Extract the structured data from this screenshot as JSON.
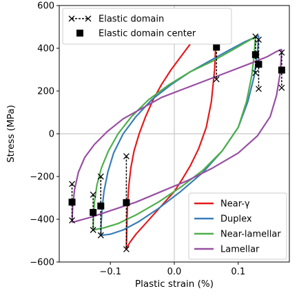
{
  "chart_data": {
    "type": "line",
    "xlabel": "Plastic strain (%)",
    "ylabel": "Stress (MPa)",
    "xlim": [
      -0.18,
      0.18
    ],
    "ylim": [
      -600,
      600
    ],
    "xticks": [
      -0.1,
      0.0,
      0.1
    ],
    "xtick_labels": [
      "−0.1",
      "0.0",
      "0.1"
    ],
    "yticks": [
      -600,
      -400,
      -200,
      0,
      200,
      400,
      600
    ],
    "ytick_labels": [
      "−600",
      "−400",
      "−200",
      "0",
      "200",
      "400",
      "600"
    ],
    "grid": false,
    "zero_lines": true,
    "legend_position": "lower-right",
    "marker_legend_position": "upper-left",
    "marker_legend": [
      {
        "label": "Elastic domain",
        "marker": "x-dash-x"
      },
      {
        "label": "Elastic domain center",
        "marker": "square"
      }
    ],
    "series": [
      {
        "name": "Near-γ",
        "color": "#e41a1c",
        "x_min": -0.075,
        "x_max": 0.066,
        "upper": {
          "x": [
            -0.075,
            -0.0745,
            -0.074,
            -0.073,
            -0.071,
            -0.068,
            -0.063,
            -0.055,
            -0.045,
            -0.033,
            -0.02,
            -0.005,
            0.01,
            0.025,
            0.04,
            0.052,
            0.06,
            0.066
          ],
          "y": [
            -540,
            -470,
            -400,
            -320,
            -240,
            -160,
            -80,
            0,
            80,
            160,
            230,
            300,
            360,
            420,
            470,
            510,
            540,
            560
          ]
        },
        "lower": {
          "x": [
            -0.075,
            -0.07,
            -0.06,
            -0.045,
            -0.03,
            -0.015,
            0.0,
            0.012,
            0.025,
            0.038,
            0.05,
            0.058,
            0.063,
            0.065,
            0.066
          ],
          "y": [
            -540,
            -510,
            -470,
            -420,
            -370,
            -320,
            -270,
            -215,
            -150,
            -70,
            30,
            150,
            300,
            430,
            560
          ]
        },
        "domains": [
          {
            "x": 0.066,
            "top": 560,
            "bottom": 255,
            "center": 405
          },
          {
            "x": -0.075,
            "top": -105,
            "bottom": -540,
            "center": -322
          }
        ]
      },
      {
        "name": "Duplex",
        "color": "#377eb8",
        "x_min": -0.115,
        "x_max": 0.132,
        "upper": {
          "x": [
            -0.115,
            -0.1145,
            -0.113,
            -0.11,
            -0.104,
            -0.095,
            -0.08,
            -0.06,
            -0.035,
            -0.005,
            0.025,
            0.055,
            0.085,
            0.11,
            0.125,
            0.132
          ],
          "y": [
            -475,
            -420,
            -350,
            -270,
            -180,
            -90,
            0,
            80,
            160,
            230,
            290,
            340,
            390,
            430,
            450,
            460
          ]
        },
        "lower": {
          "x": [
            -0.115,
            -0.1,
            -0.08,
            -0.055,
            -0.025,
            0.01,
            0.045,
            0.075,
            0.1,
            0.115,
            0.125,
            0.13,
            0.132
          ],
          "y": [
            -475,
            -470,
            -450,
            -410,
            -350,
            -270,
            -180,
            -80,
            30,
            150,
            270,
            380,
            460
          ]
        },
        "domains": [
          {
            "x": 0.132,
            "top": 440,
            "bottom": 210,
            "center": 325
          },
          {
            "x": -0.115,
            "top": -200,
            "bottom": -475,
            "center": -338
          }
        ]
      },
      {
        "name": "Near-lamellar",
        "color": "#4daf4a",
        "x_min": -0.127,
        "x_max": 0.127,
        "upper": {
          "x": [
            -0.127,
            -0.1265,
            -0.125,
            -0.121,
            -0.114,
            -0.103,
            -0.088,
            -0.067,
            -0.04,
            -0.008,
            0.025,
            0.06,
            0.09,
            0.11,
            0.122,
            0.127
          ],
          "y": [
            -450,
            -390,
            -320,
            -240,
            -160,
            -80,
            0,
            80,
            160,
            230,
            290,
            340,
            390,
            425,
            445,
            455
          ]
        },
        "lower": {
          "x": [
            -0.127,
            -0.11,
            -0.088,
            -0.06,
            -0.025,
            0.01,
            0.045,
            0.075,
            0.1,
            0.113,
            0.121,
            0.125,
            0.127
          ],
          "y": [
            -450,
            -440,
            -420,
            -380,
            -320,
            -250,
            -170,
            -80,
            30,
            150,
            270,
            370,
            455
          ]
        },
        "domains": [
          {
            "x": 0.127,
            "top": 455,
            "bottom": 285,
            "center": 370
          },
          {
            "x": -0.127,
            "top": -285,
            "bottom": -450,
            "center": -368
          }
        ]
      },
      {
        "name": "Lamellar",
        "color": "#984ea3",
        "x_min": -0.16,
        "x_max": 0.168,
        "upper": {
          "x": [
            -0.16,
            -0.159,
            -0.156,
            -0.15,
            -0.14,
            -0.125,
            -0.105,
            -0.08,
            -0.05,
            -0.02,
            0.015,
            0.05,
            0.085,
            0.12,
            0.145,
            0.16,
            0.168
          ],
          "y": [
            -415,
            -340,
            -260,
            -180,
            -110,
            -50,
            10,
            70,
            120,
            170,
            210,
            250,
            290,
            330,
            360,
            385,
            395
          ]
        },
        "lower": {
          "x": [
            -0.16,
            -0.13,
            -0.1,
            -0.06,
            -0.02,
            0.02,
            0.06,
            0.1,
            0.13,
            0.15,
            0.16,
            0.166,
            0.168
          ],
          "y": [
            -415,
            -390,
            -360,
            -320,
            -270,
            -220,
            -160,
            -90,
            -10,
            80,
            180,
            290,
            395
          ]
        },
        "domains": [
          {
            "x": 0.168,
            "top": 380,
            "bottom": 215,
            "center": 298
          },
          {
            "x": -0.16,
            "top": -235,
            "bottom": -405,
            "center": -320
          }
        ]
      }
    ]
  }
}
